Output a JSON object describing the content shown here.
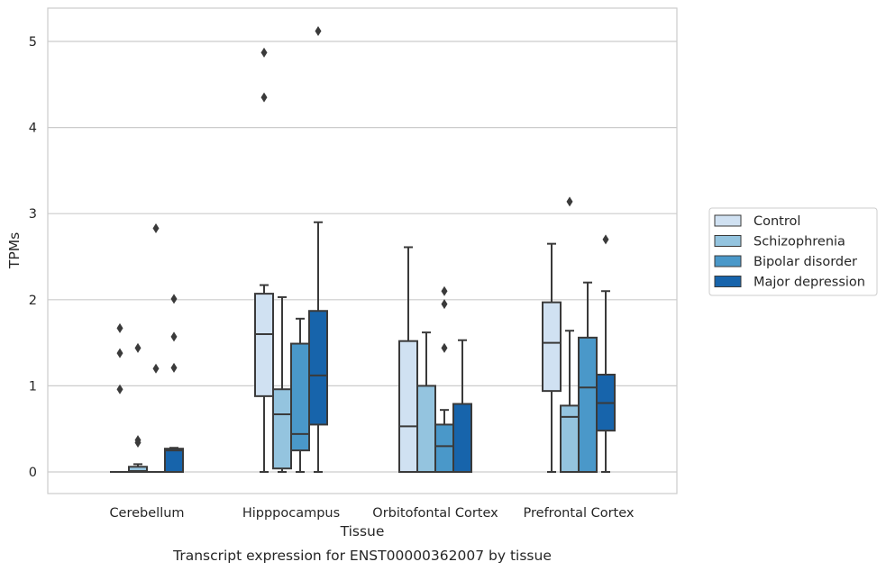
{
  "caption": "Transcript expression for ENST00000362007 by tissue",
  "colors": {
    "Control": "#d0e1f2",
    "Schizophrenia": "#94c4df",
    "Bipolar disorder": "#4a98c9",
    "Major depression": "#1764ab",
    "box_edge": "#3a3a3a",
    "grid": "#cccccc",
    "frame": "#cccccc"
  },
  "chart_data": {
    "type": "boxplot",
    "title": "",
    "xlabel": "Tissue",
    "ylabel": "TPMs",
    "ylim": [
      -0.25,
      5.38
    ],
    "yticks": [
      0,
      1,
      2,
      3,
      4,
      5
    ],
    "grid": "horizontal",
    "legend_placement": "right, outside plot",
    "categories": [
      "Cerebellum",
      "Hipppocampus",
      "Orbitofontal Cortex",
      "Prefrontal Cortex"
    ],
    "series": [
      {
        "name": "Control",
        "boxes": [
          {
            "whislo": 0,
            "q1": 0,
            "med": 0,
            "q3": 0,
            "whishi": 0,
            "fliers": [
              0.96,
              1.38,
              1.67
            ]
          },
          {
            "whislo": 0,
            "q1": 0.88,
            "med": 1.6,
            "q3": 2.07,
            "whishi": 2.17,
            "fliers": [
              4.35,
              4.87
            ]
          },
          {
            "whislo": 0,
            "q1": 0,
            "med": 0.53,
            "q3": 1.52,
            "whishi": 2.61,
            "fliers": []
          },
          {
            "whislo": 0,
            "q1": 0.94,
            "med": 1.5,
            "q3": 1.97,
            "whishi": 2.65,
            "fliers": []
          }
        ]
      },
      {
        "name": "Schizophrenia",
        "boxes": [
          {
            "whislo": 0,
            "q1": 0,
            "med": 0.01,
            "q3": 0.06,
            "whishi": 0.09,
            "fliers": [
              0.34,
              0.37,
              1.44
            ]
          },
          {
            "whislo": 0,
            "q1": 0.04,
            "med": 0.67,
            "q3": 0.96,
            "whishi": 2.03,
            "fliers": []
          },
          {
            "whislo": 0,
            "q1": 0,
            "med": 0,
            "q3": 1.0,
            "whishi": 1.62,
            "fliers": []
          },
          {
            "whislo": 0,
            "q1": 0,
            "med": 0.64,
            "q3": 0.77,
            "whishi": 1.64,
            "fliers": [
              3.14
            ]
          }
        ]
      },
      {
        "name": "Bipolar disorder",
        "boxes": [
          {
            "whislo": 0,
            "q1": 0,
            "med": 0,
            "q3": 0,
            "whishi": 0,
            "fliers": [
              1.2,
              2.83
            ]
          },
          {
            "whislo": 0,
            "q1": 0.25,
            "med": 0.44,
            "q3": 1.49,
            "whishi": 1.78,
            "fliers": []
          },
          {
            "whislo": 0,
            "q1": 0,
            "med": 0.3,
            "q3": 0.55,
            "whishi": 0.72,
            "fliers": [
              1.44,
              1.95,
              2.1
            ]
          },
          {
            "whislo": 0,
            "q1": 0,
            "med": 0.98,
            "q3": 1.56,
            "whishi": 2.2,
            "fliers": []
          }
        ]
      },
      {
        "name": "Major depression",
        "boxes": [
          {
            "whislo": 0,
            "q1": 0,
            "med": 0.25,
            "q3": 0.27,
            "whishi": 0.28,
            "fliers": [
              1.21,
              1.57,
              2.01
            ]
          },
          {
            "whislo": 0,
            "q1": 0.55,
            "med": 1.12,
            "q3": 1.87,
            "whishi": 2.9,
            "fliers": [
              5.12
            ]
          },
          {
            "whislo": 0,
            "q1": 0,
            "med": 0,
            "q3": 0.79,
            "whishi": 1.53,
            "fliers": []
          },
          {
            "whislo": 0,
            "q1": 0.48,
            "med": 0.8,
            "q3": 1.13,
            "whishi": 2.1,
            "fliers": [
              2.7
            ]
          }
        ]
      }
    ]
  }
}
